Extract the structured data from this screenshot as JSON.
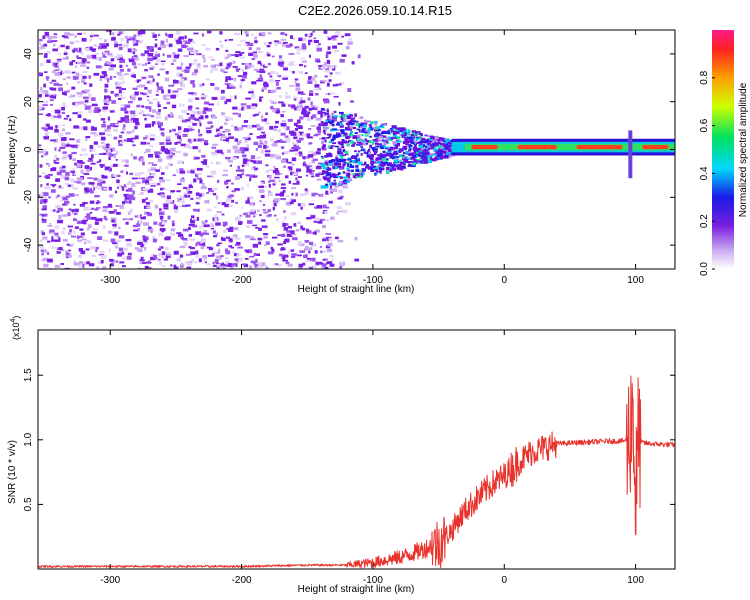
{
  "title": "C2E2.2026.059.10.14.R15",
  "chart_data": [
    {
      "type": "heatmap",
      "xlabel": "Height of straight line (km)",
      "ylabel": "Frequency (Hz)",
      "xlim": [
        -355,
        130
      ],
      "ylim": [
        -50,
        50
      ],
      "x_ticks": [
        -300,
        -200,
        -100,
        0,
        100
      ],
      "y_ticks": [
        -40,
        -20,
        0,
        20,
        40
      ],
      "colorbar": {
        "label": "Normalized spectral amplitude",
        "range": [
          0,
          1
        ],
        "ticks": [
          0.0,
          0.2,
          0.4,
          0.6,
          0.8
        ]
      },
      "features": {
        "noise_region_x": [
          -355,
          -140
        ],
        "transition_x": [
          -140,
          -40
        ],
        "carrier_frequency_hz": 1,
        "spike_x": 96
      }
    },
    {
      "type": "line",
      "xlabel": "Height of straight line (km)",
      "ylabel": "SNR (10 * v/v)",
      "scale_label": "(x10",
      "scale_exp": "4",
      "xlim": [
        -355,
        130
      ],
      "ylim": [
        0,
        1.85
      ],
      "x_ticks": [
        -300,
        -200,
        -100,
        0,
        100
      ],
      "y_ticks": [
        0.5,
        1.0,
        1.5
      ],
      "color": "#e8322b",
      "series": [
        {
          "x": [
            -355,
            -300,
            -250,
            -200,
            -150,
            -120,
            -100,
            -80,
            -70,
            -60,
            -50,
            -45,
            -40,
            -35,
            -30,
            -20,
            -10,
            0,
            10,
            20,
            30,
            40,
            60,
            80,
            90,
            95,
            98,
            100,
            102,
            105,
            110,
            130
          ],
          "values": [
            0.02,
            0.02,
            0.02,
            0.02,
            0.03,
            0.03,
            0.05,
            0.09,
            0.12,
            0.16,
            0.2,
            0.25,
            0.3,
            0.38,
            0.45,
            0.55,
            0.65,
            0.72,
            0.82,
            0.9,
            0.94,
            0.97,
            0.98,
            0.99,
            0.99,
            1.0,
            1.3,
            0.5,
            1.0,
            0.98,
            0.97,
            0.96
          ]
        }
      ]
    }
  ]
}
